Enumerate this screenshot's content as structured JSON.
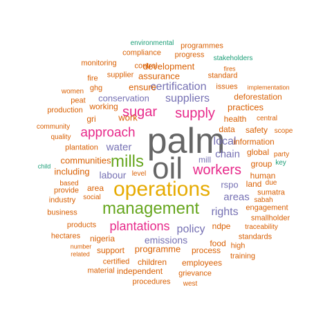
{
  "colors": {
    "grey": "#666666",
    "gold": "#E6AB02",
    "green": "#66A61E",
    "pink": "#E7298A",
    "purple": "#7570B3",
    "orange": "#D95F02",
    "teal": "#1B9E77",
    "brown": "#A6761D"
  },
  "words": [
    {
      "text": "palm",
      "color": "grey"
    },
    {
      "text": "oil",
      "color": "grey"
    },
    {
      "text": "operations",
      "color": "gold"
    },
    {
      "text": "management",
      "color": "green"
    },
    {
      "text": "mills",
      "color": "green"
    },
    {
      "text": "workers",
      "color": "pink"
    },
    {
      "text": "supply",
      "color": "pink"
    },
    {
      "text": "sugar",
      "color": "pink"
    },
    {
      "text": "approach",
      "color": "pink"
    },
    {
      "text": "plantations",
      "color": "pink"
    },
    {
      "text": "suppliers",
      "color": "purple"
    },
    {
      "text": "certification",
      "color": "purple"
    },
    {
      "text": "policy",
      "color": "purple"
    },
    {
      "text": "rights",
      "color": "purple"
    },
    {
      "text": "local",
      "color": "purple"
    },
    {
      "text": "chain",
      "color": "purple"
    },
    {
      "text": "water",
      "color": "purple"
    },
    {
      "text": "areas",
      "color": "purple"
    },
    {
      "text": "rspo",
      "color": "purple"
    },
    {
      "text": "labour",
      "color": "purple"
    },
    {
      "text": "conservation",
      "color": "purple"
    },
    {
      "text": "emissions",
      "color": "purple"
    },
    {
      "text": "mill",
      "color": "purple"
    },
    {
      "text": "practices",
      "color": "orange"
    },
    {
      "text": "assurance",
      "color": "orange"
    },
    {
      "text": "development",
      "color": "orange"
    },
    {
      "text": "ensure",
      "color": "orange"
    },
    {
      "text": "working",
      "color": "orange"
    },
    {
      "text": "communities",
      "color": "orange"
    },
    {
      "text": "including",
      "color": "orange"
    },
    {
      "text": "programme",
      "color": "orange"
    },
    {
      "text": "employees",
      "color": "orange"
    },
    {
      "text": "children",
      "color": "orange"
    },
    {
      "text": "independent",
      "color": "orange"
    },
    {
      "text": "work",
      "color": "orange"
    },
    {
      "text": "data",
      "color": "orange"
    },
    {
      "text": "process",
      "color": "orange"
    },
    {
      "text": "support",
      "color": "orange"
    },
    {
      "text": "nigeria",
      "color": "orange"
    },
    {
      "text": "ndpe",
      "color": "orange"
    },
    {
      "text": "food",
      "color": "orange"
    },
    {
      "text": "health",
      "color": "orange"
    },
    {
      "text": "information",
      "color": "orange"
    },
    {
      "text": "deforestation",
      "color": "orange"
    },
    {
      "text": "safety",
      "color": "orange"
    },
    {
      "text": "human",
      "color": "orange"
    },
    {
      "text": "group",
      "color": "orange"
    },
    {
      "text": "land",
      "color": "orange"
    },
    {
      "text": "global",
      "color": "orange"
    },
    {
      "text": "area",
      "color": "orange"
    },
    {
      "text": "plantation",
      "color": "orange"
    },
    {
      "text": "issues",
      "color": "orange"
    },
    {
      "text": "standard",
      "color": "orange"
    },
    {
      "text": "progress",
      "color": "orange"
    },
    {
      "text": "compliance",
      "color": "orange"
    },
    {
      "text": "programmes",
      "color": "orange"
    },
    {
      "text": "monitoring",
      "color": "orange"
    },
    {
      "text": "control",
      "color": "orange"
    },
    {
      "text": "supplier",
      "color": "orange"
    },
    {
      "text": "fire",
      "color": "orange"
    },
    {
      "text": "ghg",
      "color": "orange"
    },
    {
      "text": "women",
      "color": "orange"
    },
    {
      "text": "peat",
      "color": "orange"
    },
    {
      "text": "production",
      "color": "orange"
    },
    {
      "text": "community",
      "color": "orange"
    },
    {
      "text": "quality",
      "color": "orange"
    },
    {
      "text": "based",
      "color": "orange"
    },
    {
      "text": "provide",
      "color": "orange"
    },
    {
      "text": "industry",
      "color": "orange"
    },
    {
      "text": "business",
      "color": "orange"
    },
    {
      "text": "products",
      "color": "orange"
    },
    {
      "text": "hectares",
      "color": "orange"
    },
    {
      "text": "number",
      "color": "orange"
    },
    {
      "text": "related",
      "color": "orange"
    },
    {
      "text": "certified",
      "color": "orange"
    },
    {
      "text": "material",
      "color": "orange"
    },
    {
      "text": "procedures",
      "color": "orange"
    },
    {
      "text": "grievance",
      "color": "orange"
    },
    {
      "text": "west",
      "color": "orange"
    },
    {
      "text": "training",
      "color": "orange"
    },
    {
      "text": "high",
      "color": "orange"
    },
    {
      "text": "standards",
      "color": "orange"
    },
    {
      "text": "smallholder",
      "color": "orange"
    },
    {
      "text": "traceability",
      "color": "orange"
    },
    {
      "text": "engagement",
      "color": "orange"
    },
    {
      "text": "sabah",
      "color": "orange"
    },
    {
      "text": "sumatra",
      "color": "orange"
    },
    {
      "text": "due",
      "color": "orange"
    },
    {
      "text": "party",
      "color": "orange"
    },
    {
      "text": "scope",
      "color": "orange"
    },
    {
      "text": "central",
      "color": "orange"
    },
    {
      "text": "implementation",
      "color": "orange"
    },
    {
      "text": "fires",
      "color": "orange"
    },
    {
      "text": "level",
      "color": "orange"
    },
    {
      "text": "social",
      "color": "orange"
    },
    {
      "text": "gri",
      "color": "orange"
    },
    {
      "text": "environmental",
      "color": "teal"
    },
    {
      "text": "stakeholders",
      "color": "teal"
    },
    {
      "text": "child",
      "color": "teal"
    },
    {
      "text": "key",
      "color": "teal"
    }
  ]
}
